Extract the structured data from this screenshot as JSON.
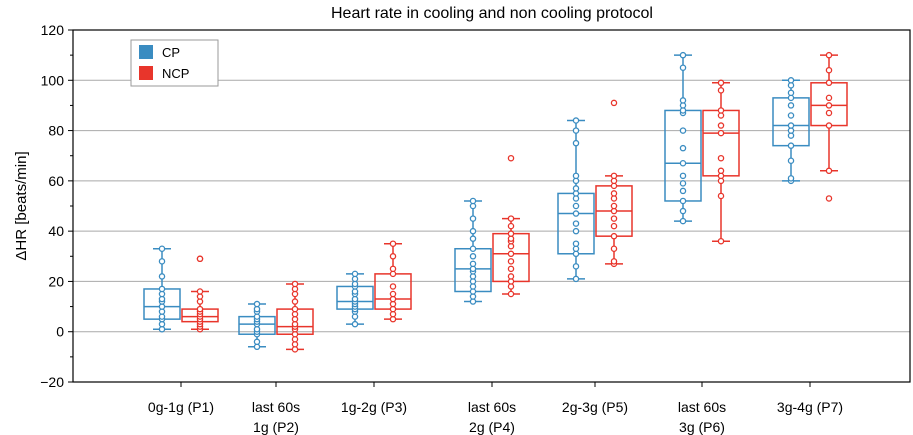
{
  "chart_data": {
    "type": "box",
    "title": "Heart rate in cooling and non cooling protocol",
    "xlabel": "",
    "ylabel": "ΔHR [beats/min]",
    "ylim": [
      -20,
      120
    ],
    "yticks": [
      -20,
      0,
      20,
      40,
      60,
      80,
      100,
      120
    ],
    "grid": "horizontal",
    "legend_position": "top-left",
    "categories": [
      [
        "0g-1g (P1)"
      ],
      [
        "last 60s",
        "1g (P2)"
      ],
      [
        "1g-2g (P3)"
      ],
      [
        "last 60s",
        "2g (P4)"
      ],
      [
        "2g-3g (P5)"
      ],
      [
        "last 60s",
        "3g (P6)"
      ],
      [
        "3g-4g (P7)"
      ]
    ],
    "series": [
      {
        "name": "CP",
        "color": "#3a8cc1",
        "boxes": [
          {
            "whislo": 1,
            "q1": 5,
            "med": 10,
            "q3": 17,
            "whishi": 33,
            "fliers": [],
            "points": [
              1,
              3,
              5,
              6,
              8,
              10,
              12,
              13,
              15,
              17,
              22,
              28,
              33
            ]
          },
          {
            "whislo": -6,
            "q1": -1,
            "med": 3,
            "q3": 6,
            "whishi": 11,
            "fliers": [],
            "points": [
              -6,
              -4,
              -1,
              0,
              1,
              3,
              4,
              5,
              6,
              8,
              9,
              11
            ]
          },
          {
            "whislo": 3,
            "q1": 9,
            "med": 12,
            "q3": 18,
            "whishi": 23,
            "fliers": [],
            "points": [
              3,
              6,
              8,
              9,
              10,
              11,
              12,
              13,
              15,
              16,
              18,
              19,
              21,
              23
            ]
          },
          {
            "whislo": 12,
            "q1": 16,
            "med": 25,
            "q3": 33,
            "whishi": 52,
            "fliers": [],
            "points": [
              12,
              14,
              16,
              18,
              20,
              22,
              24,
              25,
              27,
              30,
              33,
              37,
              40,
              45,
              50,
              52
            ]
          },
          {
            "whislo": 21,
            "q1": 31,
            "med": 47,
            "q3": 55,
            "whishi": 84,
            "fliers": [],
            "points": [
              21,
              26,
              31,
              33,
              35,
              40,
              43,
              47,
              50,
              53,
              55,
              57,
              60,
              62,
              75,
              80,
              84
            ]
          },
          {
            "whislo": 44,
            "q1": 52,
            "med": 67,
            "q3": 88,
            "whishi": 110,
            "fliers": [],
            "points": [
              44,
              48,
              52,
              56,
              59,
              62,
              67,
              73,
              80,
              87,
              88,
              90,
              92,
              105,
              110
            ]
          },
          {
            "whislo": 60,
            "q1": 74,
            "med": 82,
            "q3": 93,
            "whishi": 100,
            "fliers": [],
            "points": [
              60,
              61,
              68,
              74,
              78,
              80,
              82,
              86,
              90,
              93,
              95,
              98,
              100
            ]
          }
        ]
      },
      {
        "name": "NCP",
        "color": "#e8352b",
        "boxes": [
          {
            "whislo": 1,
            "q1": 4,
            "med": 6,
            "q3": 9,
            "whishi": 16,
            "fliers": [
              29,
              29
            ],
            "points": [
              1,
              2,
              3,
              4,
              5,
              6,
              7,
              8,
              9,
              12,
              14,
              16
            ]
          },
          {
            "whislo": -7,
            "q1": -1,
            "med": 2,
            "q3": 9,
            "whishi": 19,
            "fliers": [],
            "points": [
              -7,
              -5,
              -3,
              -1,
              1,
              2,
              3,
              5,
              7,
              9,
              12,
              15,
              17,
              19
            ]
          },
          {
            "whislo": 5,
            "q1": 9,
            "med": 13,
            "q3": 23,
            "whishi": 35,
            "fliers": [],
            "points": [
              5,
              7,
              9,
              11,
              13,
              15,
              18,
              23,
              25,
              30,
              35
            ]
          },
          {
            "whislo": 15,
            "q1": 20,
            "med": 31,
            "q3": 39,
            "whishi": 45,
            "fliers": [
              69
            ],
            "points": [
              15,
              18,
              20,
              22,
              25,
              28,
              31,
              34,
              36,
              37,
              39,
              42,
              45
            ]
          },
          {
            "whislo": 27,
            "q1": 38,
            "med": 48,
            "q3": 58,
            "whishi": 62,
            "fliers": [
              91
            ],
            "points": [
              27,
              28,
              33,
              38,
              42,
              45,
              48,
              50,
              53,
              55,
              58,
              60,
              62
            ]
          },
          {
            "whislo": 36,
            "q1": 62,
            "med": 79,
            "q3": 88,
            "whishi": 99,
            "fliers": [],
            "points": [
              36,
              54,
              60,
              62,
              64,
              69,
              79,
              82,
              86,
              88,
              96,
              99
            ]
          },
          {
            "whislo": 64,
            "q1": 82,
            "med": 90,
            "q3": 99,
            "whishi": 110,
            "fliers": [
              53
            ],
            "points": [
              64,
              82,
              87,
              90,
              93,
              99,
              104,
              110
            ]
          }
        ]
      }
    ]
  }
}
